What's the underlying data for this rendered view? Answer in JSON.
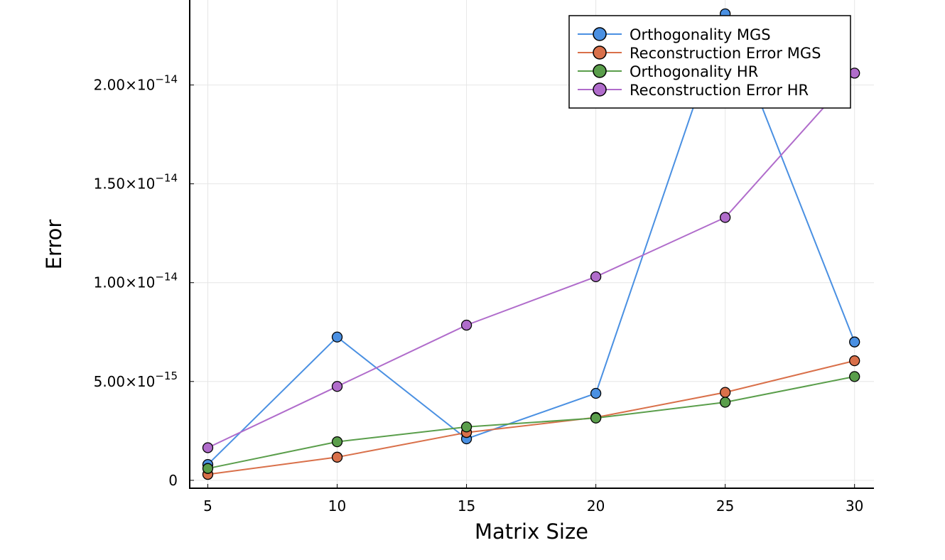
{
  "chart_data": {
    "type": "line",
    "xlabel": "Matrix Size",
    "ylabel": "Error",
    "x": [
      5,
      10,
      15,
      20,
      25,
      30
    ],
    "xticks": [
      5,
      10,
      15,
      20,
      25,
      30
    ],
    "yticks": [
      {
        "value": 0,
        "mantissa": "0",
        "exponent": ""
      },
      {
        "value": 5e-15,
        "mantissa": "5.00×10",
        "exponent": "−15"
      },
      {
        "value": 1e-14,
        "mantissa": "1.00×10",
        "exponent": "−14"
      },
      {
        "value": 1.5e-14,
        "mantissa": "1.50×10",
        "exponent": "−14"
      },
      {
        "value": 2e-14,
        "mantissa": "2.00×10",
        "exponent": "−14"
      }
    ],
    "xlim": [
      4.3,
      30.75
    ],
    "ylim": [
      -4e-16,
      2.43e-14
    ],
    "grid": true,
    "legend_position": "top-right",
    "series": [
      {
        "name": "Orthogonality MGS",
        "color": "#4a90e2",
        "values": [
          8e-16,
          7.25e-15,
          2.1e-15,
          4.4e-15,
          2.36e-14,
          7e-15
        ]
      },
      {
        "name": "Reconstruction Error MGS",
        "color": "#d9704a",
        "values": [
          3e-16,
          1.17e-15,
          2.42e-15,
          3.18e-15,
          4.45e-15,
          6.05e-15
        ]
      },
      {
        "name": "Orthogonality HR",
        "color": "#5a9e4b",
        "values": [
          6e-16,
          1.95e-15,
          2.7e-15,
          3.15e-15,
          3.95e-15,
          5.25e-15
        ]
      },
      {
        "name": "Reconstruction Error HR",
        "color": "#b06ccb",
        "values": [
          1.65e-15,
          4.75e-15,
          7.85e-15,
          1.03e-14,
          1.33e-14,
          2.06e-14
        ]
      }
    ]
  }
}
